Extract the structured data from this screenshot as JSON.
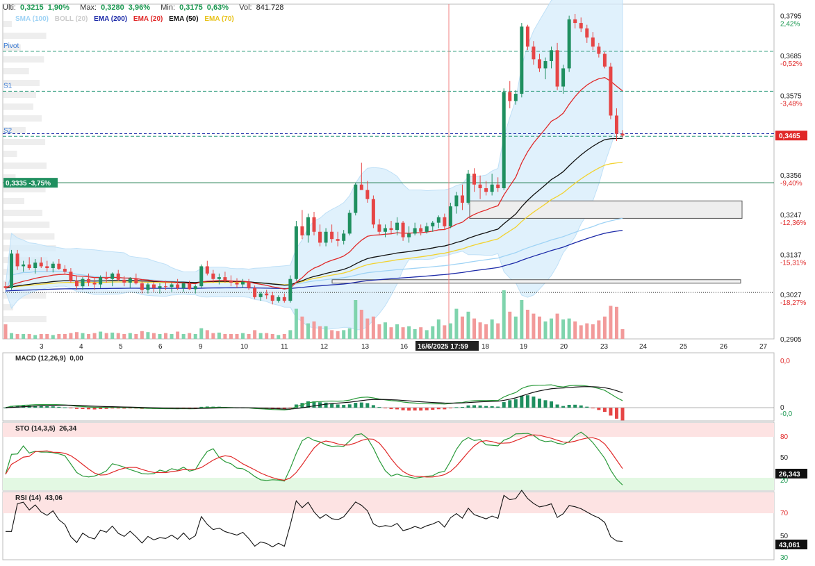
{
  "header": {
    "last_label": "Ulti:",
    "last_value": "0,3215",
    "last_pct": "1,90%",
    "max_label": "Max:",
    "max_value": "0,3280",
    "max_pct": "3,96%",
    "min_label": "Min:",
    "min_value": "0,3175",
    "min_pct": "0,63%",
    "vol_label": "Vol:",
    "vol_value": "841.728"
  },
  "legend": [
    {
      "label": "SMA (100)",
      "color": "#9fd3f5"
    },
    {
      "label": "BOLL (20)",
      "color": "#d9d9d9"
    },
    {
      "label": "EMA (200)",
      "color": "#1c2aa8"
    },
    {
      "label": "EMA (20)",
      "color": "#e02828"
    },
    {
      "label": "EMA (50)",
      "color": "#111111"
    },
    {
      "label": "EMA (70)",
      "color": "#f2d22e"
    }
  ],
  "levels": [
    {
      "label": "Pivot",
      "value": 0.3697
    },
    {
      "label": "S1",
      "value": 0.3587
    },
    {
      "label": "S2",
      "value": 0.3463
    }
  ],
  "last_price_tag": "0,3465",
  "left_marker": "0,3335  -3,75%",
  "crosshair_date": "16/6/2025 17:59",
  "y_right_labels": [
    {
      "price": "0,3795",
      "pct": "2,42%"
    },
    {
      "price": "0,3685",
      "pct": "-0,52%"
    },
    {
      "price": "0,3575",
      "pct": "-3,48%"
    },
    {
      "price": "0,3466",
      "pct": ""
    },
    {
      "price": "0,3356",
      "pct": "-9,40%"
    },
    {
      "price": "0,3247",
      "pct": "-12,36%"
    },
    {
      "price": "0,3137",
      "pct": "-15,31%"
    },
    {
      "price": "0,3027",
      "pct": "-18,27%"
    },
    {
      "price": "0,2905",
      "pct": ""
    }
  ],
  "x_labels": [
    "3",
    "4",
    "5",
    "6",
    "9",
    "10",
    "11",
    "12",
    "13",
    "16",
    "18",
    "19",
    "20",
    "23",
    "24",
    "25",
    "26",
    "27"
  ],
  "macd": {
    "title": "MACD (12,26,9)",
    "value": "0,00",
    "axis": [
      "0,0",
      "0",
      "-0,0"
    ]
  },
  "sto": {
    "title": "STO (14,3,5)",
    "value": "26,34",
    "axis": [
      "80",
      "50",
      "20"
    ],
    "tag": "26,343"
  },
  "rsi": {
    "title": "RSI (14)",
    "value": "43,06",
    "axis": [
      "70",
      "50",
      "30"
    ],
    "tag": "43,061"
  },
  "colors": {
    "up": "#1f8f5f",
    "down": "#e64545",
    "grid": "#dddddd"
  },
  "chart_data": {
    "type": "candlestick",
    "candles": [
      [
        0.305,
        0.3062,
        0.304,
        0.3045
      ],
      [
        0.3045,
        0.315,
        0.304,
        0.314
      ],
      [
        0.314,
        0.315,
        0.3095,
        0.3105
      ],
      [
        0.3105,
        0.312,
        0.309,
        0.311
      ],
      [
        0.311,
        0.313,
        0.3095,
        0.31
      ],
      [
        0.31,
        0.3125,
        0.3085,
        0.3115
      ],
      [
        0.3115,
        0.313,
        0.31,
        0.3105
      ],
      [
        0.3105,
        0.312,
        0.309,
        0.31
      ],
      [
        0.31,
        0.3118,
        0.3088,
        0.3112
      ],
      [
        0.3112,
        0.3125,
        0.3095,
        0.3098
      ],
      [
        0.3098,
        0.3108,
        0.3082,
        0.309
      ],
      [
        0.309,
        0.31,
        0.306,
        0.3065
      ],
      [
        0.3065,
        0.308,
        0.304,
        0.305
      ],
      [
        0.305,
        0.3075,
        0.304,
        0.307
      ],
      [
        0.307,
        0.3085,
        0.305,
        0.306
      ],
      [
        0.306,
        0.3075,
        0.304,
        0.3055
      ],
      [
        0.3055,
        0.308,
        0.3045,
        0.3075
      ],
      [
        0.3075,
        0.309,
        0.306,
        0.307
      ],
      [
        0.307,
        0.3088,
        0.305,
        0.3085
      ],
      [
        0.3085,
        0.3095,
        0.3065,
        0.3068
      ],
      [
        0.3068,
        0.3078,
        0.305,
        0.306
      ],
      [
        0.306,
        0.3075,
        0.3045,
        0.3072
      ],
      [
        0.3072,
        0.3085,
        0.3055,
        0.3058
      ],
      [
        0.3058,
        0.3068,
        0.303,
        0.304
      ],
      [
        0.304,
        0.306,
        0.303,
        0.3055
      ],
      [
        0.3055,
        0.3062,
        0.3035,
        0.3045
      ],
      [
        0.3045,
        0.3058,
        0.303,
        0.305
      ],
      [
        0.305,
        0.3065,
        0.304,
        0.3048
      ],
      [
        0.3048,
        0.306,
        0.3035,
        0.3055
      ],
      [
        0.3055,
        0.307,
        0.304,
        0.3045
      ],
      [
        0.3045,
        0.306,
        0.3035,
        0.3058
      ],
      [
        0.3058,
        0.3065,
        0.304,
        0.3042
      ],
      [
        0.3042,
        0.3055,
        0.303,
        0.305
      ],
      [
        0.305,
        0.311,
        0.3045,
        0.3105
      ],
      [
        0.3105,
        0.312,
        0.308,
        0.3085
      ],
      [
        0.3085,
        0.3095,
        0.306,
        0.307
      ],
      [
        0.307,
        0.3085,
        0.3055,
        0.3075
      ],
      [
        0.3075,
        0.309,
        0.306,
        0.3065
      ],
      [
        0.3065,
        0.308,
        0.305,
        0.306
      ],
      [
        0.306,
        0.3072,
        0.3045,
        0.3055
      ],
      [
        0.3055,
        0.307,
        0.3045,
        0.3062
      ],
      [
        0.3062,
        0.307,
        0.304,
        0.3045
      ],
      [
        0.3045,
        0.3052,
        0.3015,
        0.302
      ],
      [
        0.302,
        0.3035,
        0.301,
        0.303
      ],
      [
        0.303,
        0.304,
        0.3015,
        0.3025
      ],
      [
        0.3025,
        0.3035,
        0.3,
        0.301
      ],
      [
        0.301,
        0.3025,
        0.3005,
        0.302
      ],
      [
        0.302,
        0.303,
        0.3005,
        0.301
      ],
      [
        0.301,
        0.308,
        0.3005,
        0.307
      ],
      [
        0.307,
        0.323,
        0.3065,
        0.3215
      ],
      [
        0.3215,
        0.326,
        0.318,
        0.319
      ],
      [
        0.319,
        0.325,
        0.317,
        0.324
      ],
      [
        0.324,
        0.3255,
        0.319,
        0.32
      ],
      [
        0.32,
        0.322,
        0.316,
        0.317
      ],
      [
        0.317,
        0.321,
        0.316,
        0.32
      ],
      [
        0.32,
        0.322,
        0.317,
        0.318
      ],
      [
        0.318,
        0.32,
        0.316,
        0.3175
      ],
      [
        0.3175,
        0.3205,
        0.3165,
        0.3195
      ],
      [
        0.3195,
        0.326,
        0.319,
        0.3252
      ],
      [
        0.3252,
        0.3335,
        0.3245,
        0.333
      ],
      [
        0.333,
        0.339,
        0.332,
        0.3315
      ],
      [
        0.3315,
        0.334,
        0.328,
        0.329
      ],
      [
        0.329,
        0.33,
        0.321,
        0.322
      ],
      [
        0.322,
        0.3235,
        0.319,
        0.32
      ],
      [
        0.32,
        0.322,
        0.3185,
        0.321
      ],
      [
        0.321,
        0.323,
        0.3195,
        0.3205
      ],
      [
        0.3205,
        0.324,
        0.319,
        0.3225
      ],
      [
        0.3225,
        0.323,
        0.3175,
        0.3185
      ],
      [
        0.3185,
        0.3215,
        0.317,
        0.3195
      ],
      [
        0.3195,
        0.3225,
        0.319,
        0.321
      ],
      [
        0.321,
        0.322,
        0.319,
        0.32
      ],
      [
        0.32,
        0.3225,
        0.3195,
        0.3215
      ],
      [
        0.3215,
        0.323,
        0.32,
        0.3225
      ],
      [
        0.3225,
        0.3245,
        0.321,
        0.324
      ],
      [
        0.324,
        0.325,
        0.3205,
        0.3215
      ],
      [
        0.3215,
        0.328,
        0.321,
        0.327
      ],
      [
        0.327,
        0.331,
        0.325,
        0.33
      ],
      [
        0.33,
        0.333,
        0.326,
        0.328
      ],
      [
        0.328,
        0.337,
        0.3275,
        0.336
      ],
      [
        0.336,
        0.3375,
        0.331,
        0.333
      ],
      [
        0.333,
        0.3355,
        0.329,
        0.332
      ],
      [
        0.332,
        0.334,
        0.33,
        0.331
      ],
      [
        0.331,
        0.336,
        0.33,
        0.333
      ],
      [
        0.333,
        0.335,
        0.331,
        0.332
      ],
      [
        0.332,
        0.3595,
        0.3315,
        0.3585
      ],
      [
        0.3585,
        0.3615,
        0.354,
        0.356
      ],
      [
        0.356,
        0.359,
        0.355,
        0.358
      ],
      [
        0.358,
        0.3775,
        0.357,
        0.3765
      ],
      [
        0.3765,
        0.377,
        0.37,
        0.371
      ],
      [
        0.371,
        0.3725,
        0.366,
        0.3675
      ],
      [
        0.3675,
        0.369,
        0.364,
        0.365
      ],
      [
        0.365,
        0.368,
        0.362,
        0.367
      ],
      [
        0.367,
        0.371,
        0.365,
        0.37
      ],
      [
        0.37,
        0.372,
        0.359,
        0.36
      ],
      [
        0.36,
        0.366,
        0.358,
        0.365
      ],
      [
        0.365,
        0.3795,
        0.364,
        0.3785
      ],
      [
        0.3785,
        0.38,
        0.376,
        0.3775
      ],
      [
        0.3775,
        0.379,
        0.375,
        0.376
      ],
      [
        0.376,
        0.377,
        0.372,
        0.3735
      ],
      [
        0.3735,
        0.375,
        0.37,
        0.371
      ],
      [
        0.371,
        0.372,
        0.368,
        0.369
      ],
      [
        0.369,
        0.3695,
        0.365,
        0.3655
      ],
      [
        0.3655,
        0.3665,
        0.351,
        0.352
      ],
      [
        0.352,
        0.354,
        0.345,
        0.347
      ],
      [
        0.347,
        0.348,
        0.346,
        0.3465
      ]
    ],
    "volumes": [
      0.3,
      0.12,
      0.1,
      0.1,
      0.1,
      0.08,
      0.1,
      0.1,
      0.08,
      0.1,
      0.1,
      0.12,
      0.14,
      0.12,
      0.1,
      0.12,
      0.15,
      0.12,
      0.13,
      0.12,
      0.1,
      0.12,
      0.1,
      0.16,
      0.14,
      0.12,
      0.1,
      0.12,
      0.1,
      0.15,
      0.1,
      0.12,
      0.1,
      0.22,
      0.18,
      0.12,
      0.13,
      0.1,
      0.1,
      0.1,
      0.12,
      0.1,
      0.18,
      0.12,
      0.12,
      0.1,
      0.08,
      0.1,
      0.18,
      0.62,
      0.46,
      0.32,
      0.36,
      0.26,
      0.26,
      0.18,
      0.16,
      0.18,
      0.22,
      0.8,
      0.6,
      0.42,
      0.46,
      0.3,
      0.34,
      0.24,
      0.3,
      0.24,
      0.26,
      0.2,
      0.24,
      0.18,
      0.26,
      0.4,
      0.28,
      0.32,
      0.62,
      0.46,
      0.56,
      0.42,
      0.34,
      0.3,
      0.4,
      0.32,
      1.0,
      0.56,
      0.46,
      0.8,
      0.6,
      0.52,
      0.46,
      0.36,
      0.42,
      0.52,
      0.4,
      0.42,
      0.36,
      0.28,
      0.32,
      0.3,
      0.38,
      0.46,
      0.68,
      0.66,
      0.2
    ],
    "ylim": [
      0.2905,
      0.38
    ]
  }
}
